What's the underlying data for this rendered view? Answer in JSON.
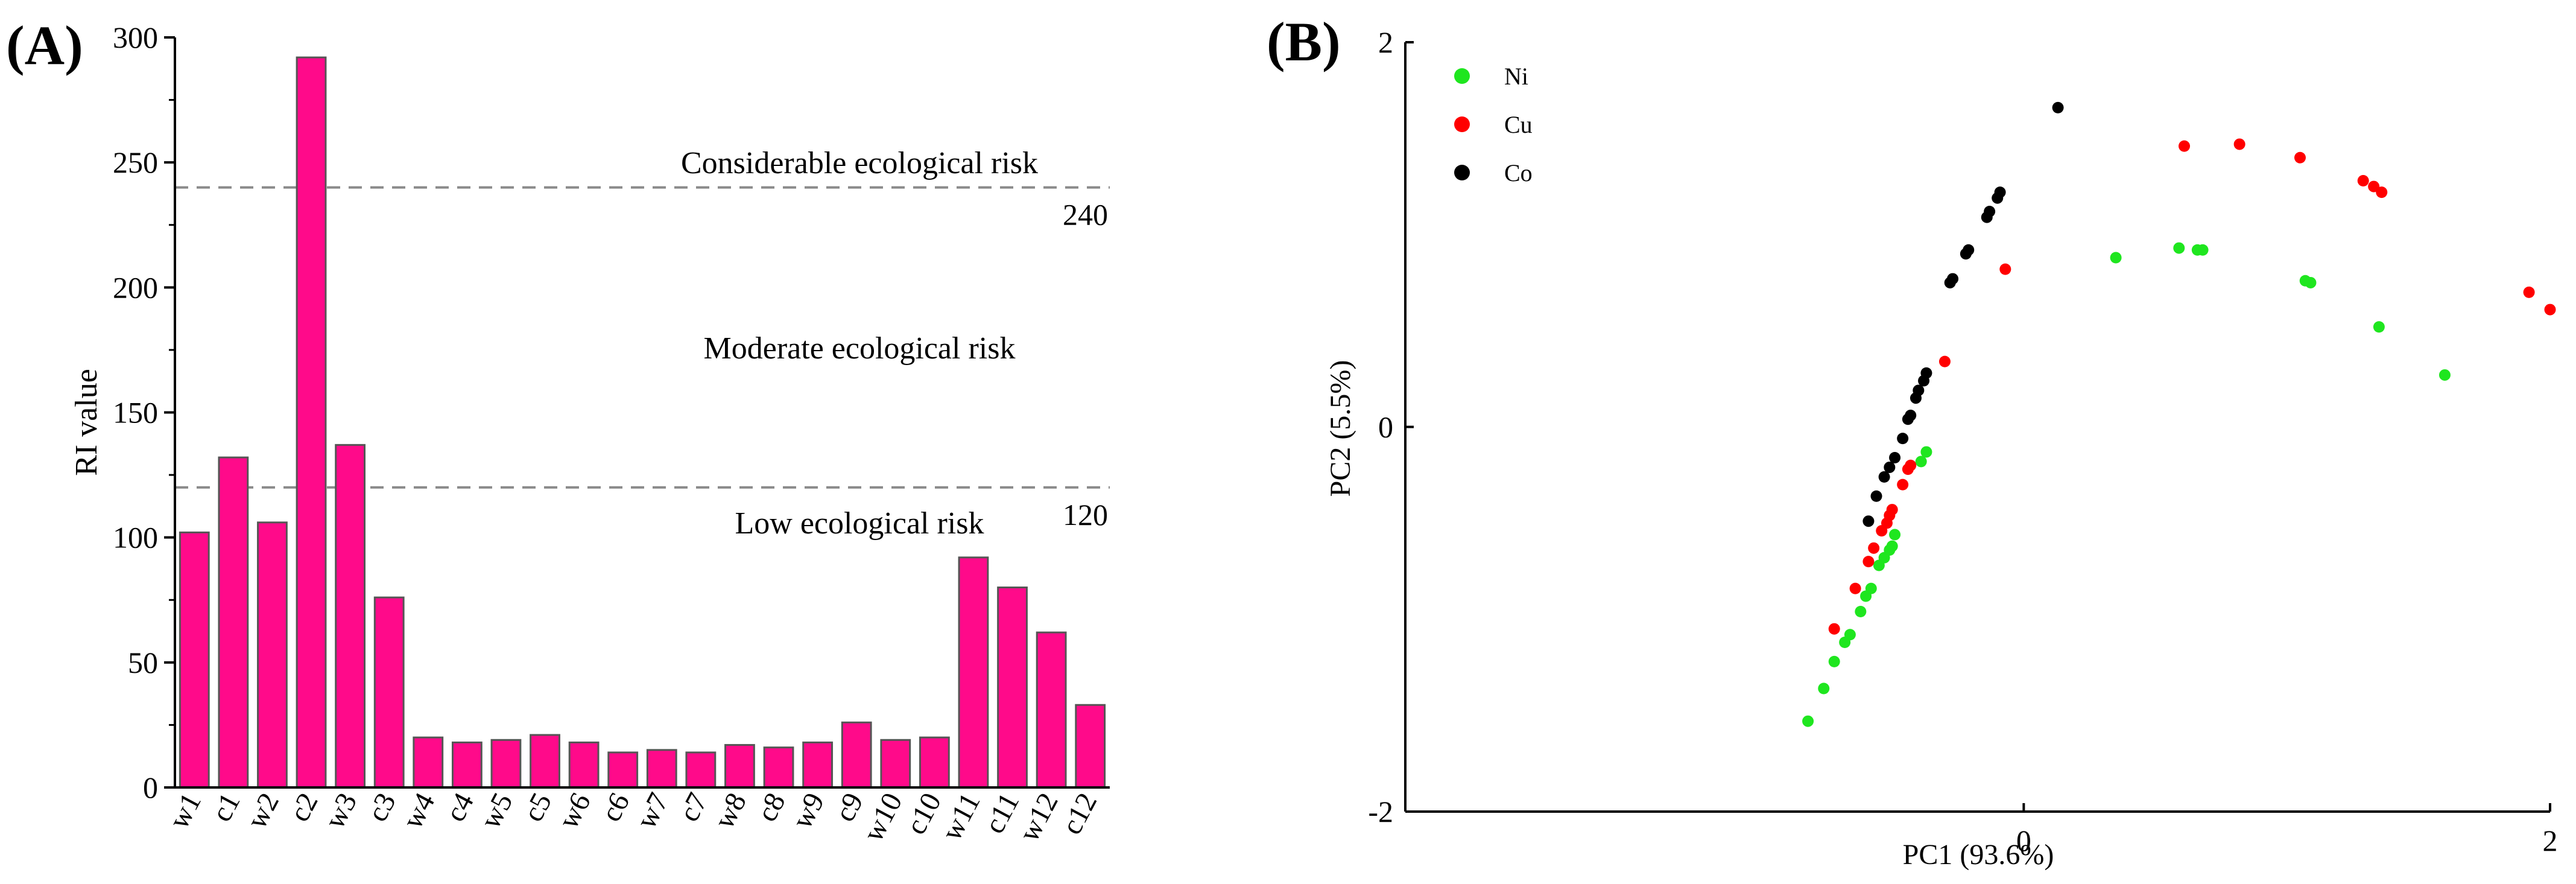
{
  "chart_data": [
    {
      "panel_label": "(A)",
      "type": "bar",
      "ylabel": "RI value",
      "xlabel": "",
      "ylim": [
        0,
        300
      ],
      "yticks": [
        0,
        50,
        100,
        150,
        200,
        250,
        300
      ],
      "categories": [
        "w1",
        "c1",
        "w2",
        "c2",
        "w3",
        "c3",
        "w4",
        "c4",
        "w5",
        "c5",
        "w6",
        "c6",
        "w7",
        "c7",
        "w8",
        "c8",
        "w9",
        "c9",
        "w10",
        "c10",
        "w11",
        "c11",
        "w12",
        "c12"
      ],
      "values": [
        102,
        132,
        106,
        292,
        137,
        76,
        20,
        18,
        19,
        21,
        18,
        14,
        15,
        14,
        17,
        16,
        18,
        26,
        19,
        20,
        92,
        80,
        62,
        33
      ],
      "bar_color": "#FF0A8A",
      "bar_edge_color": "#555555",
      "reference_lines": [
        {
          "value": 240,
          "label": "240"
        },
        {
          "value": 120,
          "label": "120"
        }
      ],
      "annotations": [
        {
          "text": "Considerable ecological risk",
          "y": 250
        },
        {
          "text": "Moderate ecological risk",
          "y": 176
        },
        {
          "text": "Low ecological risk",
          "y": 106
        }
      ]
    },
    {
      "panel_label": "(B)",
      "type": "scatter",
      "xlabel": "PC1 (93.6%)",
      "ylabel": "PC2 (5.5%)",
      "xlim": [
        -2.35,
        2.0
      ],
      "ylim": [
        -2,
        2
      ],
      "xticks": [
        0,
        2
      ],
      "yticks": [
        -2,
        0,
        2
      ],
      "legend_position": "top-left",
      "series": [
        {
          "name": "Ni",
          "color": "#1FE61F",
          "points": [
            [
              -0.82,
              -1.53
            ],
            [
              -0.76,
              -1.36
            ],
            [
              -0.72,
              -1.22
            ],
            [
              -0.68,
              -1.12
            ],
            [
              -0.66,
              -1.08
            ],
            [
              -0.62,
              -0.96
            ],
            [
              -0.6,
              -0.88
            ],
            [
              -0.58,
              -0.84
            ],
            [
              -0.55,
              -0.72
            ],
            [
              -0.53,
              -0.68
            ],
            [
              -0.51,
              -0.64
            ],
            [
              -0.49,
              -0.56
            ],
            [
              -0.5,
              -0.62
            ],
            [
              -0.39,
              -0.18
            ],
            [
              -0.37,
              -0.13
            ],
            [
              0.35,
              0.88
            ],
            [
              0.59,
              0.93
            ],
            [
              0.66,
              0.92
            ],
            [
              0.68,
              0.92
            ],
            [
              1.07,
              0.76
            ],
            [
              1.09,
              0.75
            ],
            [
              1.35,
              0.52
            ],
            [
              1.6,
              0.27
            ]
          ]
        },
        {
          "name": "Cu",
          "color": "#FF0000",
          "points": [
            [
              -0.72,
              -1.05
            ],
            [
              -0.64,
              -0.84
            ],
            [
              -0.59,
              -0.7
            ],
            [
              -0.57,
              -0.63
            ],
            [
              -0.54,
              -0.54
            ],
            [
              -0.52,
              -0.5
            ],
            [
              -0.51,
              -0.46
            ],
            [
              -0.5,
              -0.43
            ],
            [
              -0.46,
              -0.3
            ],
            [
              -0.44,
              -0.22
            ],
            [
              -0.43,
              -0.2
            ],
            [
              -0.3,
              0.34
            ],
            [
              -0.07,
              0.82
            ],
            [
              0.61,
              1.46
            ],
            [
              0.82,
              1.47
            ],
            [
              1.05,
              1.4
            ],
            [
              1.29,
              1.28
            ],
            [
              1.33,
              1.25
            ],
            [
              1.36,
              1.22
            ],
            [
              1.92,
              0.7
            ],
            [
              2.0,
              0.61
            ]
          ]
        },
        {
          "name": "Co",
          "color": "#000000",
          "points": [
            [
              -0.59,
              -0.49
            ],
            [
              -0.56,
              -0.36
            ],
            [
              -0.53,
              -0.26
            ],
            [
              -0.51,
              -0.21
            ],
            [
              -0.49,
              -0.16
            ],
            [
              -0.46,
              -0.06
            ],
            [
              -0.44,
              0.04
            ],
            [
              -0.43,
              0.06
            ],
            [
              -0.41,
              0.15
            ],
            [
              -0.4,
              0.19
            ],
            [
              -0.38,
              0.24
            ],
            [
              -0.37,
              0.28
            ],
            [
              -0.28,
              0.75
            ],
            [
              -0.27,
              0.77
            ],
            [
              -0.22,
              0.9
            ],
            [
              -0.21,
              0.92
            ],
            [
              -0.14,
              1.09
            ],
            [
              -0.13,
              1.12
            ],
            [
              -0.1,
              1.19
            ],
            [
              -0.09,
              1.22
            ],
            [
              0.13,
              1.66
            ]
          ]
        }
      ]
    }
  ]
}
